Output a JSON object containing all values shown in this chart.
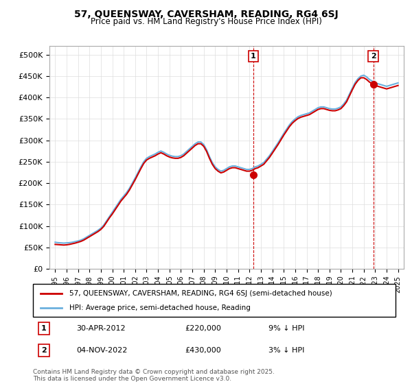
{
  "title": "57, QUEENSWAY, CAVERSHAM, READING, RG4 6SJ",
  "subtitle": "Price paid vs. HM Land Registry's House Price Index (HPI)",
  "legend_line1": "57, QUEENSWAY, CAVERSHAM, READING, RG4 6SJ (semi-detached house)",
  "legend_line2": "HPI: Average price, semi-detached house, Reading",
  "annotation1_label": "1",
  "annotation1_date": "30-APR-2012",
  "annotation1_price": "£220,000",
  "annotation1_note": "9% ↓ HPI",
  "annotation2_label": "2",
  "annotation2_date": "04-NOV-2022",
  "annotation2_price": "£430,000",
  "annotation2_note": "3% ↓ HPI",
  "footnote": "Contains HM Land Registry data © Crown copyright and database right 2025.\nThis data is licensed under the Open Government Licence v3.0.",
  "hpi_color": "#6ab0de",
  "price_color": "#cc0000",
  "annotation_color": "#cc0000",
  "background_color": "#ffffff",
  "grid_color": "#dddddd",
  "ylim": [
    0,
    520000
  ],
  "yticks": [
    0,
    50000,
    100000,
    150000,
    200000,
    250000,
    300000,
    350000,
    400000,
    450000,
    500000
  ],
  "xlim_start": 1994.5,
  "xlim_end": 2025.5,
  "hpi_years": [
    1995.0,
    1995.25,
    1995.5,
    1995.75,
    1996.0,
    1996.25,
    1996.5,
    1996.75,
    1997.0,
    1997.25,
    1997.5,
    1997.75,
    1998.0,
    1998.25,
    1998.5,
    1998.75,
    1999.0,
    1999.25,
    1999.5,
    1999.75,
    2000.0,
    2000.25,
    2000.5,
    2000.75,
    2001.0,
    2001.25,
    2001.5,
    2001.75,
    2002.0,
    2002.25,
    2002.5,
    2002.75,
    2003.0,
    2003.25,
    2003.5,
    2003.75,
    2004.0,
    2004.25,
    2004.5,
    2004.75,
    2005.0,
    2005.25,
    2005.5,
    2005.75,
    2006.0,
    2006.25,
    2006.5,
    2006.75,
    2007.0,
    2007.25,
    2007.5,
    2007.75,
    2008.0,
    2008.25,
    2008.5,
    2008.75,
    2009.0,
    2009.25,
    2009.5,
    2009.75,
    2010.0,
    2010.25,
    2010.5,
    2010.75,
    2011.0,
    2011.25,
    2011.5,
    2011.75,
    2012.0,
    2012.25,
    2012.5,
    2012.75,
    2013.0,
    2013.25,
    2013.5,
    2013.75,
    2014.0,
    2014.25,
    2014.5,
    2014.75,
    2015.0,
    2015.25,
    2015.5,
    2015.75,
    2016.0,
    2016.25,
    2016.5,
    2016.75,
    2017.0,
    2017.25,
    2017.5,
    2017.75,
    2018.0,
    2018.25,
    2018.5,
    2018.75,
    2019.0,
    2019.25,
    2019.5,
    2019.75,
    2020.0,
    2020.25,
    2020.5,
    2020.75,
    2021.0,
    2021.25,
    2021.5,
    2021.75,
    2022.0,
    2022.25,
    2022.5,
    2022.75,
    2023.0,
    2023.25,
    2023.5,
    2023.75,
    2024.0,
    2024.25,
    2024.5,
    2024.75,
    2025.0
  ],
  "hpi_values": [
    62000,
    61000,
    60500,
    60000,
    60500,
    61000,
    62000,
    63500,
    65000,
    67000,
    70000,
    74000,
    78000,
    82000,
    86000,
    90000,
    95000,
    102000,
    112000,
    122000,
    132000,
    142000,
    152000,
    162000,
    170000,
    178000,
    188000,
    200000,
    212000,
    225000,
    238000,
    250000,
    258000,
    262000,
    265000,
    268000,
    272000,
    275000,
    272000,
    268000,
    265000,
    263000,
    262000,
    262000,
    264000,
    268000,
    274000,
    280000,
    286000,
    292000,
    296000,
    296000,
    290000,
    278000,
    262000,
    248000,
    238000,
    232000,
    228000,
    230000,
    234000,
    238000,
    240000,
    240000,
    238000,
    236000,
    234000,
    232000,
    232000,
    234000,
    238000,
    240000,
    244000,
    248000,
    256000,
    264000,
    274000,
    284000,
    294000,
    305000,
    316000,
    326000,
    336000,
    344000,
    350000,
    355000,
    358000,
    360000,
    362000,
    364000,
    368000,
    372000,
    376000,
    378000,
    378000,
    376000,
    374000,
    373000,
    373000,
    375000,
    378000,
    385000,
    394000,
    408000,
    422000,
    435000,
    444000,
    450000,
    452000,
    448000,
    442000,
    438000,
    434000,
    432000,
    430000,
    428000,
    426000,
    428000,
    430000,
    432000,
    434000
  ],
  "price_years": [
    1995.0,
    1995.25,
    1995.5,
    1995.75,
    1996.0,
    1996.25,
    1996.5,
    1996.75,
    1997.0,
    1997.25,
    1997.5,
    1997.75,
    1998.0,
    1998.25,
    1998.5,
    1998.75,
    1999.0,
    1999.25,
    1999.5,
    1999.75,
    2000.0,
    2000.25,
    2000.5,
    2000.75,
    2001.0,
    2001.25,
    2001.5,
    2001.75,
    2002.0,
    2002.25,
    2002.5,
    2002.75,
    2003.0,
    2003.25,
    2003.5,
    2003.75,
    2004.0,
    2004.25,
    2004.5,
    2004.75,
    2005.0,
    2005.25,
    2005.5,
    2005.75,
    2006.0,
    2006.25,
    2006.5,
    2006.75,
    2007.0,
    2007.25,
    2007.5,
    2007.75,
    2008.0,
    2008.25,
    2008.5,
    2008.75,
    2009.0,
    2009.25,
    2009.5,
    2009.75,
    2010.0,
    2010.25,
    2010.5,
    2010.75,
    2011.0,
    2011.25,
    2011.5,
    2011.75,
    2012.0,
    2012.25,
    2012.5,
    2012.75,
    2013.0,
    2013.25,
    2013.5,
    2013.75,
    2014.0,
    2014.25,
    2014.5,
    2014.75,
    2015.0,
    2015.25,
    2015.5,
    2015.75,
    2016.0,
    2016.25,
    2016.5,
    2016.75,
    2017.0,
    2017.25,
    2017.5,
    2017.75,
    2018.0,
    2018.25,
    2018.5,
    2018.75,
    2019.0,
    2019.25,
    2019.5,
    2019.75,
    2020.0,
    2020.25,
    2020.5,
    2020.75,
    2021.0,
    2021.25,
    2021.5,
    2021.75,
    2022.0,
    2022.25,
    2022.5,
    2022.75,
    2023.0,
    2023.25,
    2023.5,
    2023.75,
    2024.0,
    2024.25,
    2024.5,
    2024.75,
    2025.0
  ],
  "price_values": [
    57000,
    56500,
    56000,
    55500,
    56000,
    57000,
    58500,
    60000,
    62000,
    64000,
    67000,
    71000,
    75000,
    79000,
    83000,
    87000,
    92000,
    99000,
    109000,
    119000,
    128000,
    138000,
    148000,
    158000,
    166000,
    174000,
    184000,
    196000,
    208000,
    221000,
    234000,
    246000,
    254000,
    258000,
    261000,
    264000,
    268000,
    271000,
    268000,
    264000,
    261000,
    259000,
    258000,
    258000,
    260000,
    264000,
    270000,
    276000,
    282000,
    288000,
    292000,
    292000,
    286000,
    274000,
    258000,
    244000,
    234000,
    228000,
    224000,
    226000,
    230000,
    234000,
    236000,
    236000,
    234000,
    232000,
    230000,
    228000,
    228000,
    230000,
    234000,
    236000,
    240000,
    244000,
    252000,
    260000,
    270000,
    280000,
    290000,
    301000,
    312000,
    322000,
    332000,
    340000,
    346000,
    351000,
    354000,
    356000,
    358000,
    360000,
    364000,
    368000,
    372000,
    374000,
    374000,
    372000,
    370000,
    369000,
    369000,
    371000,
    374000,
    381000,
    390000,
    404000,
    418000,
    431000,
    440000,
    446000,
    446000,
    442000,
    436000,
    432000,
    428000,
    426000,
    424000,
    422000,
    420000,
    422000,
    424000,
    426000,
    428000
  ],
  "sale1_year": 2012.33,
  "sale1_price": 220000,
  "sale2_year": 2022.83,
  "sale2_price": 430000,
  "xtick_years": [
    1995,
    1996,
    1997,
    1998,
    1999,
    2000,
    2001,
    2002,
    2003,
    2004,
    2005,
    2006,
    2007,
    2008,
    2009,
    2010,
    2011,
    2012,
    2013,
    2014,
    2015,
    2016,
    2017,
    2018,
    2019,
    2020,
    2021,
    2022,
    2023,
    2024,
    2025
  ]
}
